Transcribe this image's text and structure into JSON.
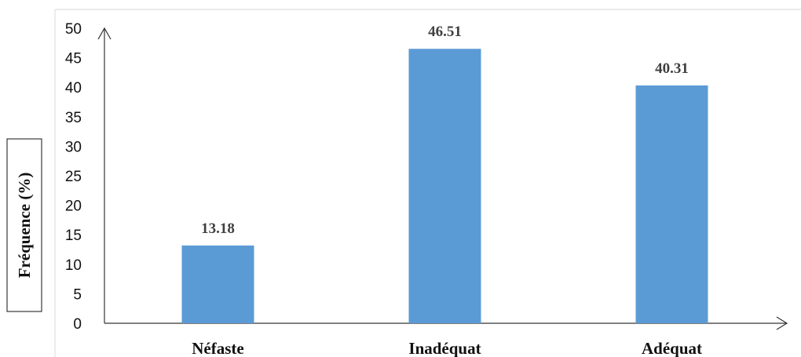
{
  "chart_data": {
    "type": "bar",
    "title": "",
    "xlabel": "",
    "ylabel": "Fréquence (%)",
    "categories": [
      "Néfaste",
      "Inadéquat",
      "Adéquat"
    ],
    "values": [
      13.18,
      46.51,
      40.31
    ],
    "data_labels": [
      "13.18",
      "46.51",
      "40.31"
    ],
    "ylim": [
      0,
      50
    ],
    "yticks": [
      "0",
      "5",
      "10",
      "15",
      "20",
      "25",
      "30",
      "35",
      "40",
      "45",
      "50"
    ],
    "grid": false,
    "legend": "none",
    "bar_color": "#5b9bd5",
    "axis_color": "#333333"
  }
}
